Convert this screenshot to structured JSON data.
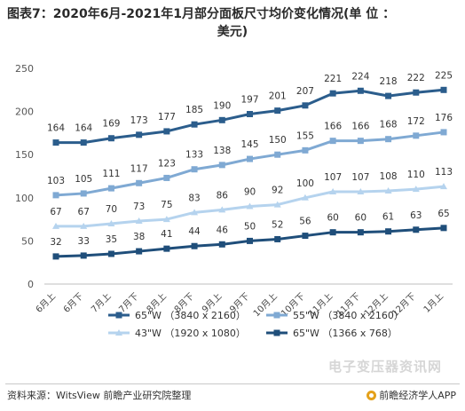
{
  "header": {
    "title_line1": "图表7：2020年6月-2021年1月部分面板尺寸均价变化情况(单 位 ：",
    "title_line2": "美元)"
  },
  "footer": {
    "source": "资料来源：WitsView 前瞻产业研究院整理",
    "brand": "前瞻经济学人APP",
    "brand_icon": "coin-icon",
    "watermark": "电子变压器资讯网"
  },
  "chart_data": {
    "type": "line",
    "categories": [
      "6月上",
      "6月下",
      "7月上",
      "7月下",
      "8月上",
      "8月下",
      "9月上",
      "9月下",
      "10月上",
      "10月下",
      "11月上",
      "11月下",
      "12月上",
      "12月下",
      "1月上"
    ],
    "ylim": [
      0,
      250
    ],
    "yticks": [
      0,
      50,
      100,
      150,
      200,
      250
    ],
    "grid": false,
    "legend_position": "bottom",
    "series": [
      {
        "name": "65\"W （3840 x 2160）",
        "color": "#2b5d8c",
        "marker": "square",
        "values": [
          164,
          164,
          169,
          173,
          177,
          185,
          190,
          197,
          201,
          207,
          221,
          224,
          218,
          222,
          225
        ]
      },
      {
        "name": "55\"W （3840 x 2160）",
        "color": "#7fa9d3",
        "marker": "square",
        "values": [
          103,
          105,
          111,
          117,
          123,
          133,
          138,
          145,
          150,
          155,
          166,
          166,
          168,
          172,
          176
        ]
      },
      {
        "name": "43\"W （1920 x 1080）",
        "color": "#b5d3ee",
        "marker": "triangle",
        "values": [
          67,
          67,
          70,
          73,
          75,
          83,
          86,
          90,
          92,
          100,
          107,
          107,
          108,
          110,
          113
        ]
      },
      {
        "name": "65\"W （1366 x 768）",
        "color": "#1f4e7a",
        "marker": "square",
        "values": [
          32,
          33,
          35,
          38,
          41,
          44,
          46,
          50,
          52,
          56,
          60,
          60,
          61,
          63,
          65
        ]
      }
    ]
  }
}
